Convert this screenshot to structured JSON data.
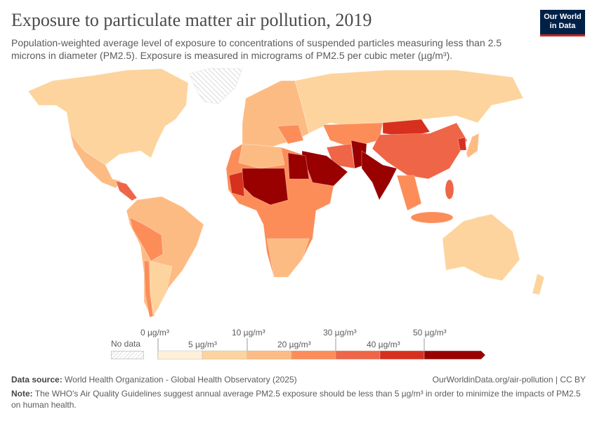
{
  "header": {
    "title": "Exposure to particulate matter air pollution, 2019",
    "subtitle": "Population-weighted average level of exposure to concentrations of suspended particles measuring less than 2.5 microns in diameter (PM2.5). Exposure is measured in micrograms of PM2.5 per cubic meter (µg/m³).",
    "logo": "Our World in Data",
    "logo_line1": "Our World",
    "logo_line2": "in Data"
  },
  "colors": {
    "no_data": "hatched-gray",
    "bins": [
      "#fef0d9",
      "#fdd49e",
      "#fdbb84",
      "#fc8d59",
      "#ef6548",
      "#d7301f",
      "#990000"
    ],
    "logo_bg": "#002147",
    "logo_accent": "#ce261e"
  },
  "legend": {
    "no_data_label": "No data",
    "ticks": [
      "0 µg/m³",
      "5 µg/m³",
      "10 µg/m³",
      "20 µg/m³",
      "30 µg/m³",
      "40 µg/m³",
      "50 µg/m³"
    ]
  },
  "footer": {
    "source_label": "Data source:",
    "source": "World Health Organization - Global Health Observatory (2025)",
    "url": "OurWorldinData.org/air-pollution | CC BY",
    "note_label": "Note:",
    "note": "The WHO's Air Quality Guidelines suggest annual average PM2.5 exposure should be less than 5 µg/m³ in order to minimize the impacts of PM2.5 on human health."
  }
}
